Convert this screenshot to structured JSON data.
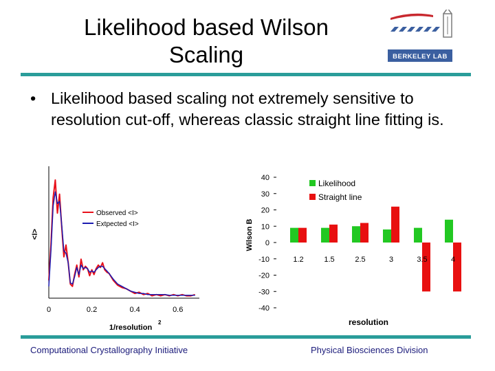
{
  "slide": {
    "title_line1": "Likelihood based Wilson",
    "title_line2": "Scaling",
    "bullet": "Likelihood based scaling not extremely sensitive to resolution cut-off, whereas classic straight line fitting is.",
    "footer_left": "Computational Crystallography Initiative",
    "footer_right": "Physical Biosciences Division",
    "logo_text": "BERKELEY LAB",
    "colors": {
      "accent": "#2a9d9a",
      "footer_text": "#1a1a7a"
    }
  },
  "chart_data": [
    {
      "type": "line",
      "xlabel": "1/resolution",
      "xlabel_sup": "2",
      "ylabel": "<I>",
      "x_ticks": [
        "0",
        "0.2",
        "0.4",
        "0.6"
      ],
      "xlim": [
        0,
        0.7
      ],
      "series": [
        {
          "name": "Observed <I>",
          "color": "#e8101a",
          "x": [
            0.0,
            0.01,
            0.02,
            0.03,
            0.04,
            0.05,
            0.06,
            0.07,
            0.08,
            0.09,
            0.1,
            0.11,
            0.12,
            0.13,
            0.14,
            0.15,
            0.16,
            0.17,
            0.18,
            0.19,
            0.2,
            0.21,
            0.22,
            0.23,
            0.24,
            0.25,
            0.26,
            0.27,
            0.28,
            0.3,
            0.32,
            0.34,
            0.36,
            0.38,
            0.4,
            0.42,
            0.44,
            0.46,
            0.48,
            0.5,
            0.52,
            0.54,
            0.56,
            0.58,
            0.6,
            0.62,
            0.64,
            0.66,
            0.68
          ],
          "y": [
            0.15,
            0.45,
            0.85,
            1.0,
            0.72,
            0.88,
            0.6,
            0.35,
            0.45,
            0.3,
            0.12,
            0.1,
            0.2,
            0.28,
            0.18,
            0.33,
            0.24,
            0.27,
            0.25,
            0.19,
            0.24,
            0.2,
            0.25,
            0.28,
            0.26,
            0.3,
            0.24,
            0.22,
            0.21,
            0.15,
            0.11,
            0.09,
            0.08,
            0.06,
            0.04,
            0.05,
            0.03,
            0.04,
            0.02,
            0.03,
            0.02,
            0.03,
            0.02,
            0.03,
            0.02,
            0.03,
            0.02,
            0.02,
            0.03
          ]
        },
        {
          "name": "Extpected <I>",
          "color": "#1b1bb0",
          "x": [
            0.0,
            0.01,
            0.02,
            0.03,
            0.04,
            0.05,
            0.06,
            0.07,
            0.08,
            0.09,
            0.1,
            0.11,
            0.12,
            0.13,
            0.14,
            0.15,
            0.16,
            0.17,
            0.18,
            0.19,
            0.2,
            0.21,
            0.22,
            0.23,
            0.24,
            0.25,
            0.26,
            0.27,
            0.28,
            0.3,
            0.32,
            0.34,
            0.36,
            0.38,
            0.4,
            0.42,
            0.44,
            0.46,
            0.48,
            0.5,
            0.52,
            0.54,
            0.56,
            0.58,
            0.6,
            0.62,
            0.64,
            0.66,
            0.68
          ],
          "y": [
            0.1,
            0.4,
            0.78,
            0.9,
            0.8,
            0.82,
            0.62,
            0.4,
            0.38,
            0.3,
            0.13,
            0.12,
            0.18,
            0.26,
            0.2,
            0.28,
            0.25,
            0.26,
            0.25,
            0.22,
            0.23,
            0.22,
            0.24,
            0.26,
            0.27,
            0.27,
            0.25,
            0.23,
            0.21,
            0.16,
            0.12,
            0.1,
            0.08,
            0.06,
            0.05,
            0.04,
            0.04,
            0.03,
            0.03,
            0.03,
            0.03,
            0.03,
            0.025,
            0.025,
            0.025,
            0.025,
            0.025,
            0.025,
            0.025
          ]
        }
      ],
      "legend_position": "center-right"
    },
    {
      "type": "bar",
      "xlabel": "resolution",
      "ylabel": "Wilson B",
      "categories": [
        "1.2",
        "1.5",
        "2.5",
        "3",
        "3.5",
        "4"
      ],
      "y_ticks": [
        "40",
        "30",
        "20",
        "10",
        "0",
        "-10",
        "-20",
        "-30",
        "-40"
      ],
      "ylim": [
        -40,
        40
      ],
      "series": [
        {
          "name": "Likelihood",
          "color": "#22c822",
          "values": [
            9,
            9,
            10,
            8,
            9,
            14
          ]
        },
        {
          "name": "Straight line",
          "color": "#e81010",
          "values": [
            9,
            11,
            12,
            22,
            -30,
            -30
          ]
        }
      ],
      "legend_position": "top-right"
    }
  ]
}
